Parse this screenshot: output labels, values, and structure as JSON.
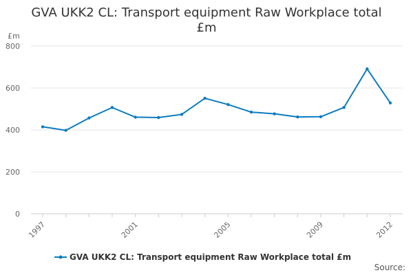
{
  "chart_data": {
    "type": "line",
    "title_lines": [
      "GVA UKK2 CL: Transport equipment Raw Workplace total",
      "£m"
    ],
    "ylabel": "£m",
    "xlabel": "",
    "ylim": [
      0,
      800
    ],
    "yticks": [
      0,
      200,
      400,
      600,
      800
    ],
    "x": [
      1997,
      1998,
      1999,
      2000,
      2001,
      2002,
      2003,
      2004,
      2005,
      2006,
      2007,
      2008,
      2009,
      2010,
      2011,
      2012
    ],
    "xtick_labels": [
      "1997",
      "2001",
      "2005",
      "2009",
      "2012"
    ],
    "series": [
      {
        "name": "GVA UKK2 CL: Transport equipment Raw Workplace total £m",
        "color": "#0b7bbf",
        "values": [
          415,
          398,
          457,
          507,
          461,
          459,
          474,
          551,
          521,
          485,
          477,
          462,
          463,
          507,
          691,
          529
        ]
      }
    ],
    "grid": true,
    "legend_position": "bottom",
    "source_label": "Source:"
  }
}
